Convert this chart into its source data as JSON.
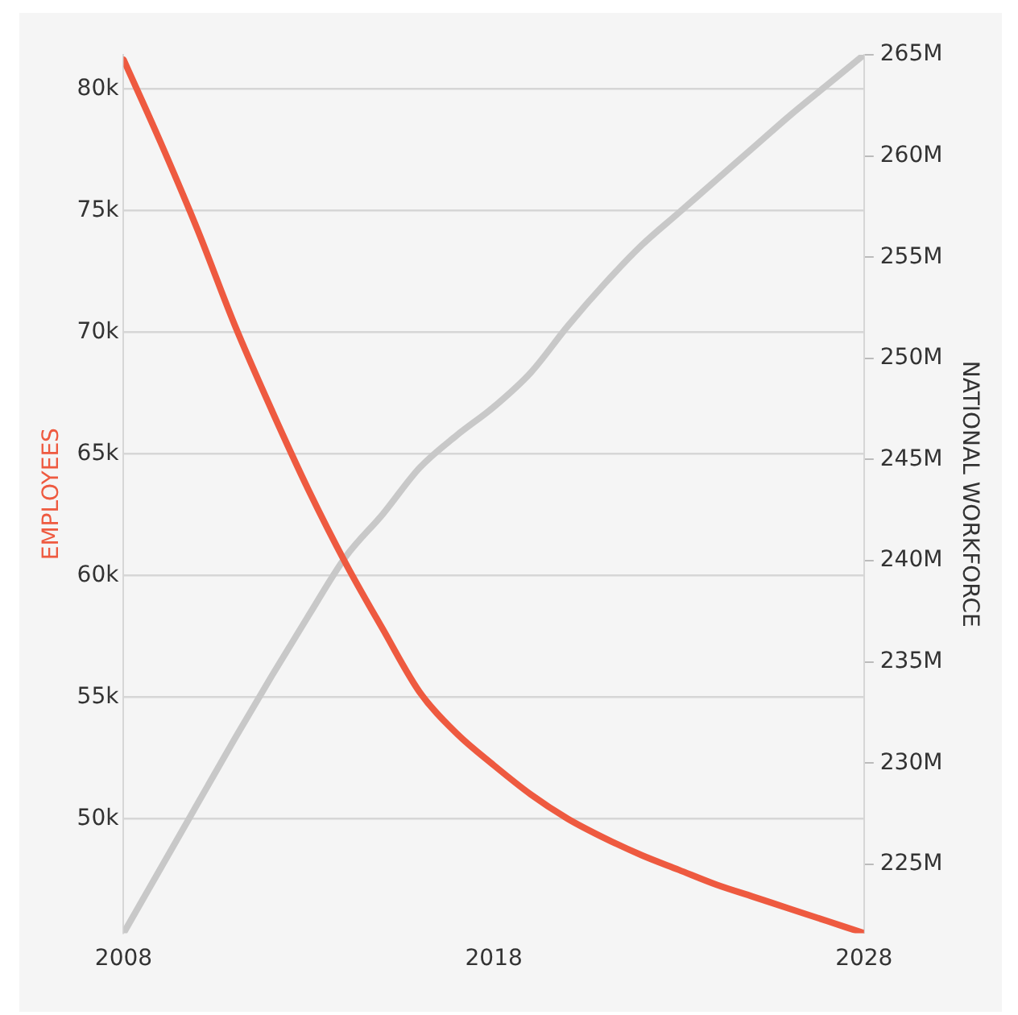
{
  "chart_data": {
    "type": "line",
    "ylabel": "EMPLOYEES",
    "y2label": "NATIONAL WORKFORCE",
    "x": [
      2008,
      2009,
      2010,
      2011,
      2012,
      2013,
      2014,
      2015,
      2016,
      2017,
      2018,
      2019,
      2020,
      2021,
      2022,
      2023,
      2024,
      2025,
      2026,
      2027,
      2028
    ],
    "xlim": [
      2008,
      2028
    ],
    "xticks": [
      2008,
      2018,
      2028
    ],
    "ylim": [
      45300,
      81400
    ],
    "yticks": [
      {
        "value": 50000,
        "label": "50k"
      },
      {
        "value": 55000,
        "label": "55k"
      },
      {
        "value": 60000,
        "label": "60k"
      },
      {
        "value": 65000,
        "label": "65k"
      },
      {
        "value": 70000,
        "label": "70k"
      },
      {
        "value": 75000,
        "label": "75k"
      },
      {
        "value": 80000,
        "label": "80k"
      }
    ],
    "y2lim": [
      221600000,
      265000000
    ],
    "y2ticks": [
      {
        "value": 225000000,
        "label": "225M"
      },
      {
        "value": 230000000,
        "label": "230M"
      },
      {
        "value": 235000000,
        "label": "235M"
      },
      {
        "value": 240000000,
        "label": "240M"
      },
      {
        "value": 245000000,
        "label": "245M"
      },
      {
        "value": 250000000,
        "label": "250M"
      },
      {
        "value": 255000000,
        "label": "255M"
      },
      {
        "value": 260000000,
        "label": "260M"
      },
      {
        "value": 265000000,
        "label": "265M"
      }
    ],
    "grid": "y",
    "legend": false,
    "marker": "none",
    "line_style": "solid",
    "series": [
      {
        "color": "#ee5a40",
        "values": [
          81200,
          77800,
          74200,
          70300,
          66800,
          63500,
          60500,
          57800,
          55200,
          53500,
          52200,
          51000,
          50000,
          49200,
          48500,
          47900,
          47300,
          46800,
          46300,
          45800,
          45300
        ]
      },
      {
        "color": "#c8c8c8",
        "axis": "y2",
        "values": [
          221600000,
          224800000,
          228000000,
          231200000,
          234300000,
          237300000,
          240200000,
          242300000,
          244600000,
          246200000,
          247600000,
          249300000,
          251600000,
          253700000,
          255600000,
          257200000,
          258800000,
          260400000,
          262000000,
          263500000,
          265000000
        ]
      }
    ]
  }
}
